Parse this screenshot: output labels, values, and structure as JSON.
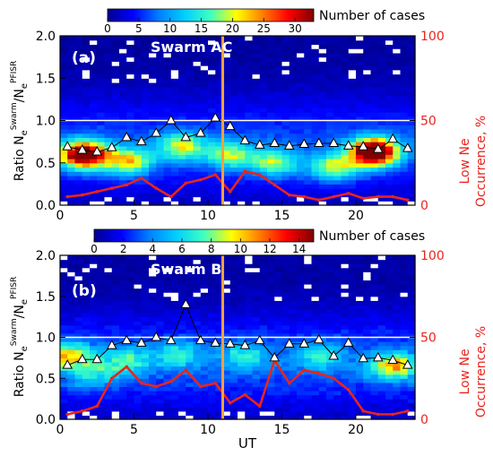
{
  "colors": {
    "mean_line": "#000000",
    "low_ne_line": "#e8251d",
    "ut_marker": "#f5a040",
    "unity_line": "#ffffff",
    "right_axis_text": "#e8251d",
    "colormap": [
      "#000090",
      "#0000ff",
      "#0080ff",
      "#00d0ff",
      "#40ffc0",
      "#ffff00",
      "#ff8000",
      "#ff0000",
      "#800000"
    ]
  },
  "chart_data": [
    {
      "type": "heatmap",
      "panel_label": "(a)",
      "title": "Swarm AC",
      "colorbar": {
        "label": "Number of cases",
        "ticks": [
          "0",
          "5",
          "10",
          "15",
          "20",
          "25",
          "30"
        ],
        "range": [
          0,
          33
        ]
      },
      "xlabel": "",
      "xlim": [
        0,
        24
      ],
      "xticks": [
        "0",
        "5",
        "10",
        "15",
        "20"
      ],
      "ylabel": "Ratio NₑSwarm/NₑPFISR",
      "ylabel_base": "Ratio N",
      "ylabel_sub": "e",
      "ylabel_sup1": "Swarm",
      "ylabel_slash": "/N",
      "ylabel_sup2": "PFISR",
      "ylim": [
        0,
        2
      ],
      "yticks": [
        "0.0",
        "0.5",
        "1.0",
        "1.5",
        "2.0"
      ],
      "y2label_line1": "Low Ne",
      "y2label_line2": "Occurrence, %",
      "y2lim": [
        0,
        100
      ],
      "y2ticks": [
        "0",
        "50",
        "100"
      ],
      "ut_marker": 11,
      "grid": false,
      "series": [
        {
          "x": [
            0,
            1,
            2,
            3,
            4,
            5,
            6,
            7,
            8,
            9,
            10,
            11,
            12,
            13,
            14,
            15,
            16,
            17,
            18,
            19,
            20,
            21,
            22,
            23
          ],
          "values": [
            0.69,
            0.65,
            0.63,
            0.68,
            0.8,
            0.75,
            0.85,
            1.0,
            0.8,
            0.85,
            1.03,
            0.93,
            0.76,
            0.71,
            0.73,
            0.7,
            0.72,
            0.73,
            0.73,
            0.7,
            0.69,
            0.66,
            0.78,
            0.67
          ]
        },
        {
          "x": [
            0,
            1,
            2,
            3,
            4,
            5,
            6,
            7,
            8,
            9,
            10,
            11,
            12,
            13,
            14,
            15,
            16,
            17,
            18,
            19,
            20,
            21,
            22,
            23
          ],
          "values": [
            5,
            6,
            8,
            10,
            12,
            16,
            10,
            5,
            13,
            15,
            18,
            8,
            20,
            18,
            12,
            6,
            5,
            3,
            5,
            7,
            4,
            5,
            5,
            3
          ]
        }
      ],
      "density_peaks": [
        {
          "x": 1.6,
          "y": 0.6,
          "v": 30
        },
        {
          "x": 4.6,
          "y": 0.52,
          "v": 15
        },
        {
          "x": 8.2,
          "y": 0.7,
          "v": 13
        },
        {
          "x": 11.5,
          "y": 0.6,
          "v": 12
        },
        {
          "x": 14.5,
          "y": 0.5,
          "v": 12
        },
        {
          "x": 21.2,
          "y": 0.63,
          "v": 33
        },
        {
          "x": 18.5,
          "y": 0.45,
          "v": 13
        }
      ]
    },
    {
      "type": "heatmap",
      "panel_label": "(b)",
      "title": "Swarm B",
      "colorbar": {
        "label": "Number of cases",
        "ticks": [
          "0",
          "2",
          "4",
          "6",
          "8",
          "10",
          "12",
          "14"
        ],
        "range": [
          0,
          15
        ]
      },
      "xlabel": "UT",
      "xlim": [
        0,
        24
      ],
      "xticks": [
        "0",
        "5",
        "10",
        "15",
        "20"
      ],
      "ylabel": "Ratio NₑSwarm/NₑPFISR",
      "ylabel_base": "Ratio N",
      "ylabel_sub": "e",
      "ylabel_sup1": "Swarm",
      "ylabel_slash": "/N",
      "ylabel_sup2": "PFISR",
      "ylim": [
        0,
        2
      ],
      "yticks": [
        "0.0",
        "0.5",
        "1.0",
        "1.5",
        "2.0"
      ],
      "y2label_line1": "Low Ne",
      "y2label_line2": "Occurrence, %",
      "y2lim": [
        0,
        100
      ],
      "y2ticks": [
        "0",
        "50",
        "100"
      ],
      "ut_marker": 11,
      "grid": false,
      "series": [
        {
          "x": [
            0,
            1,
            2,
            3,
            4,
            5,
            6,
            7,
            8,
            9,
            10,
            11,
            12,
            13,
            14,
            15,
            16,
            17,
            18,
            19,
            20,
            21,
            22,
            23
          ],
          "values": [
            0.66,
            0.73,
            0.73,
            0.9,
            0.96,
            0.93,
            1.0,
            0.96,
            1.4,
            0.96,
            0.93,
            0.92,
            0.9,
            0.96,
            0.75,
            0.92,
            0.92,
            0.97,
            0.77,
            0.93,
            0.74,
            0.75,
            0.72,
            0.66
          ]
        },
        {
          "x": [
            0,
            1,
            2,
            3,
            4,
            5,
            6,
            7,
            8,
            9,
            10,
            11,
            12,
            13,
            14,
            15,
            16,
            17,
            18,
            19,
            20,
            21,
            22,
            23
          ],
          "values": [
            3,
            5,
            8,
            25,
            32,
            22,
            20,
            23,
            30,
            20,
            22,
            10,
            15,
            8,
            36,
            22,
            30,
            28,
            25,
            18,
            5,
            3,
            3,
            5
          ]
        }
      ],
      "density_peaks": [
        {
          "x": 0.5,
          "y": 0.78,
          "v": 14
        },
        {
          "x": 4.5,
          "y": 0.72,
          "v": 8
        },
        {
          "x": 2.2,
          "y": 0.55,
          "v": 7
        },
        {
          "x": 8.0,
          "y": 0.8,
          "v": 7
        },
        {
          "x": 12.5,
          "y": 0.78,
          "v": 7
        },
        {
          "x": 17.5,
          "y": 0.78,
          "v": 7
        },
        {
          "x": 22.5,
          "y": 0.65,
          "v": 14
        }
      ]
    }
  ]
}
